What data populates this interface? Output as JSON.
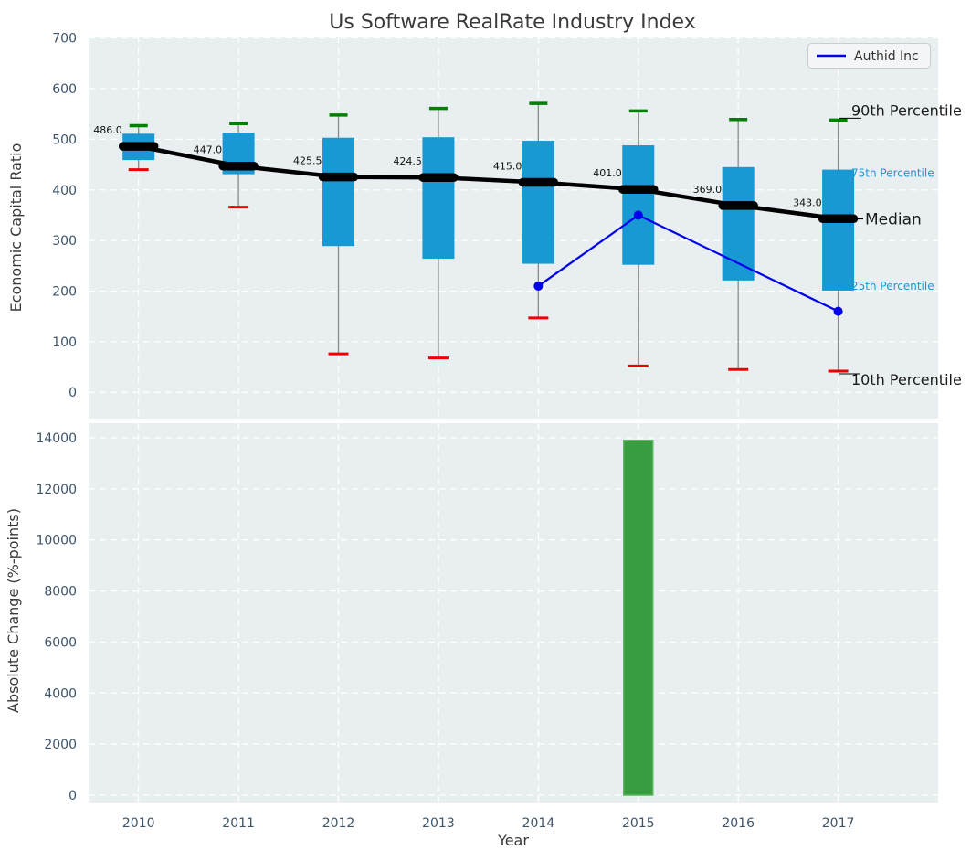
{
  "figure": {
    "title": "Us Software RealRate Industry Index",
    "colors": {
      "axes_background": "#e9eef1",
      "grid": "#ffffff",
      "tick_label": "#3e5469",
      "text": "#3a3a3a",
      "box_fill": "#1899d3",
      "median_line": "#000000",
      "whisker_line": "#898989",
      "p90_cap": "#008000",
      "p10_cap": "#ee0000",
      "series_line": "#0000ee",
      "bar_fill": "#3a9c40",
      "bar_edge": "#5cb860",
      "accent_text": "#1a9bd0",
      "annotation_text": "#1a1a1a",
      "value_label": "#111111",
      "legend_fill": "#f4f5f7",
      "legend_border": "#cccccc"
    }
  },
  "legend": {
    "label": "Authid Inc"
  },
  "percentile_labels": {
    "p90": "90th Percentile",
    "p75": "75th Percentile",
    "median": "Median",
    "p25": "25th Percentile",
    "p10": "10th Percentile"
  },
  "chart_data": [
    {
      "type": "boxplot",
      "title": "Us Software RealRate Industry Index",
      "xlabel": "Year",
      "ylabel": "Economic Capital Ratio",
      "ylim": [
        -52,
        703
      ],
      "yticks": [
        0,
        100,
        200,
        300,
        400,
        500,
        600,
        700
      ],
      "xlim": [
        2009.5,
        2018.0
      ],
      "grid": true,
      "years": [
        2010,
        2011,
        2012,
        2013,
        2014,
        2015,
        2016,
        2017
      ],
      "boxes": [
        {
          "year": 2010,
          "p10": 440,
          "p25": 459,
          "median": 486.0,
          "p75": 511,
          "p90": 527,
          "median_label": "486.0"
        },
        {
          "year": 2011,
          "p10": 366,
          "p25": 431,
          "median": 447.0,
          "p75": 513,
          "p90": 531,
          "median_label": "447.0"
        },
        {
          "year": 2012,
          "p10": 76,
          "p25": 289,
          "median": 425.5,
          "p75": 503,
          "p90": 548,
          "median_label": "425.5"
        },
        {
          "year": 2013,
          "p10": 68,
          "p25": 264,
          "median": 424.5,
          "p75": 504,
          "p90": 561,
          "median_label": "424.5"
        },
        {
          "year": 2014,
          "p10": 147,
          "p25": 254,
          "median": 415.0,
          "p75": 497,
          "p90": 571,
          "median_label": "415.0"
        },
        {
          "year": 2015,
          "p10": 52,
          "p25": 252,
          "median": 401.0,
          "p75": 488,
          "p90": 556,
          "median_label": "401.0"
        },
        {
          "year": 2016,
          "p10": 45,
          "p25": 221,
          "median": 369.0,
          "p75": 445,
          "p90": 539,
          "median_label": "369.0"
        },
        {
          "year": 2017,
          "p10": 42,
          "p25": 201,
          "median": 343.0,
          "p75": 440,
          "p90": 538,
          "median_label": "343.0"
        }
      ],
      "series": [
        {
          "name": "Authid Inc",
          "points": [
            [
              2014,
              210
            ],
            [
              2015,
              350
            ],
            [
              2017,
              160
            ]
          ]
        }
      ],
      "legend_position": "upper right"
    },
    {
      "type": "bar",
      "xlabel": "Year",
      "ylabel": "Absolute Change (%-points)",
      "ylim": [
        -286,
        14572
      ],
      "yticks": [
        0,
        2000,
        4000,
        6000,
        8000,
        10000,
        12000,
        14000
      ],
      "xlim": [
        2009.5,
        2018.0
      ],
      "grid": true,
      "categories": [
        2010,
        2011,
        2012,
        2013,
        2014,
        2015,
        2016,
        2017
      ],
      "values": [
        0,
        0,
        0,
        0,
        0,
        13900,
        0,
        0
      ]
    }
  ]
}
